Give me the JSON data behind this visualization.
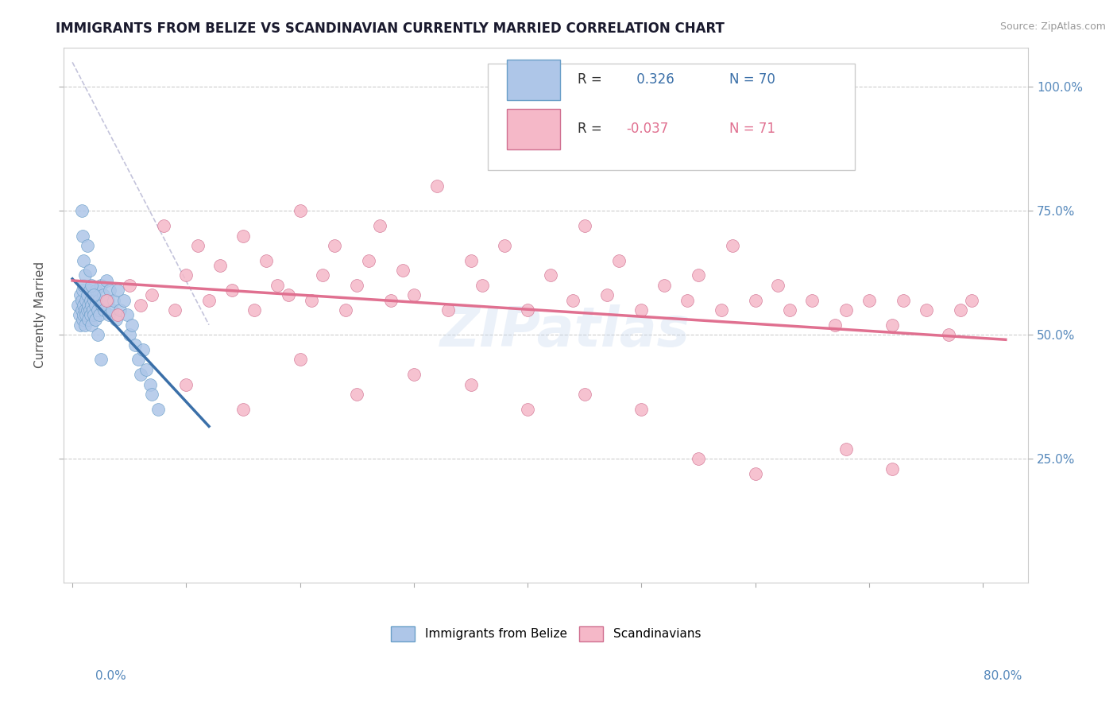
{
  "title": "IMMIGRANTS FROM BELIZE VS SCANDINAVIAN CURRENTLY MARRIED CORRELATION CHART",
  "source": "Source: ZipAtlas.com",
  "ylabel": "Currently Married",
  "blue_color": "#aec6e8",
  "pink_color": "#f5b8c8",
  "blue_line_color": "#3a6fa8",
  "pink_line_color": "#e07090",
  "blue_edge_color": "#6a9fc8",
  "pink_edge_color": "#d07090",
  "watermark": "ZIPatlas",
  "xlim_min": -0.008,
  "xlim_max": 0.84,
  "ylim_min": 0.0,
  "ylim_max": 1.08,
  "yticks": [
    0.25,
    0.5,
    0.75,
    1.0
  ],
  "ytick_labels": [
    "25.0%",
    "50.0%",
    "75.0%",
    "100.0%"
  ],
  "belize_x": [
    0.005,
    0.006,
    0.007,
    0.007,
    0.008,
    0.008,
    0.009,
    0.009,
    0.01,
    0.01,
    0.01,
    0.011,
    0.011,
    0.012,
    0.012,
    0.013,
    0.013,
    0.014,
    0.014,
    0.015,
    0.015,
    0.016,
    0.016,
    0.017,
    0.017,
    0.018,
    0.018,
    0.019,
    0.019,
    0.02,
    0.02,
    0.021,
    0.022,
    0.023,
    0.024,
    0.025,
    0.026,
    0.027,
    0.028,
    0.03,
    0.031,
    0.032,
    0.033,
    0.035,
    0.036,
    0.038,
    0.04,
    0.042,
    0.045,
    0.048,
    0.05,
    0.052,
    0.055,
    0.058,
    0.06,
    0.062,
    0.065,
    0.068,
    0.07,
    0.075,
    0.008,
    0.009,
    0.01,
    0.011,
    0.013,
    0.015,
    0.017,
    0.019,
    0.022,
    0.025
  ],
  "belize_y": [
    0.56,
    0.54,
    0.58,
    0.52,
    0.55,
    0.57,
    0.53,
    0.59,
    0.56,
    0.54,
    0.6,
    0.55,
    0.52,
    0.57,
    0.54,
    0.58,
    0.55,
    0.56,
    0.53,
    0.59,
    0.55,
    0.57,
    0.54,
    0.56,
    0.52,
    0.58,
    0.55,
    0.57,
    0.54,
    0.56,
    0.53,
    0.59,
    0.55,
    0.57,
    0.54,
    0.6,
    0.56,
    0.58,
    0.55,
    0.61,
    0.57,
    0.54,
    0.59,
    0.55,
    0.57,
    0.53,
    0.59,
    0.55,
    0.57,
    0.54,
    0.5,
    0.52,
    0.48,
    0.45,
    0.42,
    0.47,
    0.43,
    0.4,
    0.38,
    0.35,
    0.75,
    0.7,
    0.65,
    0.62,
    0.68,
    0.63,
    0.6,
    0.58,
    0.5,
    0.45
  ],
  "scand_x": [
    0.03,
    0.04,
    0.05,
    0.06,
    0.07,
    0.08,
    0.09,
    0.1,
    0.11,
    0.12,
    0.13,
    0.14,
    0.15,
    0.16,
    0.17,
    0.18,
    0.19,
    0.2,
    0.21,
    0.22,
    0.23,
    0.24,
    0.25,
    0.26,
    0.27,
    0.28,
    0.29,
    0.3,
    0.32,
    0.33,
    0.35,
    0.36,
    0.38,
    0.4,
    0.42,
    0.44,
    0.45,
    0.47,
    0.48,
    0.5,
    0.52,
    0.54,
    0.55,
    0.57,
    0.58,
    0.6,
    0.62,
    0.63,
    0.65,
    0.67,
    0.68,
    0.7,
    0.72,
    0.73,
    0.75,
    0.77,
    0.78,
    0.79,
    0.1,
    0.15,
    0.2,
    0.25,
    0.3,
    0.35,
    0.4,
    0.45,
    0.5,
    0.55,
    0.6,
    0.68,
    0.72
  ],
  "scand_y": [
    0.57,
    0.54,
    0.6,
    0.56,
    0.58,
    0.72,
    0.55,
    0.62,
    0.68,
    0.57,
    0.64,
    0.59,
    0.7,
    0.55,
    0.65,
    0.6,
    0.58,
    0.75,
    0.57,
    0.62,
    0.68,
    0.55,
    0.6,
    0.65,
    0.72,
    0.57,
    0.63,
    0.58,
    0.8,
    0.55,
    0.65,
    0.6,
    0.68,
    0.55,
    0.62,
    0.57,
    0.72,
    0.58,
    0.65,
    0.55,
    0.6,
    0.57,
    0.62,
    0.55,
    0.68,
    0.57,
    0.6,
    0.55,
    0.57,
    0.52,
    0.55,
    0.57,
    0.52,
    0.57,
    0.55,
    0.5,
    0.55,
    0.57,
    0.4,
    0.35,
    0.45,
    0.38,
    0.42,
    0.4,
    0.35,
    0.38,
    0.35,
    0.25,
    0.22,
    0.27,
    0.23
  ],
  "legend_entries": [
    {
      "color": "#aec6e8",
      "edge": "#6a9fc8",
      "text": "R =  0.326   N = 70"
    },
    {
      "color": "#f5b8c8",
      "edge": "#d07090",
      "text": "R = -0.037   N = 71"
    }
  ],
  "legend_r_color": "#3a6fa8",
  "legend_n_color": "#1a1a2e"
}
